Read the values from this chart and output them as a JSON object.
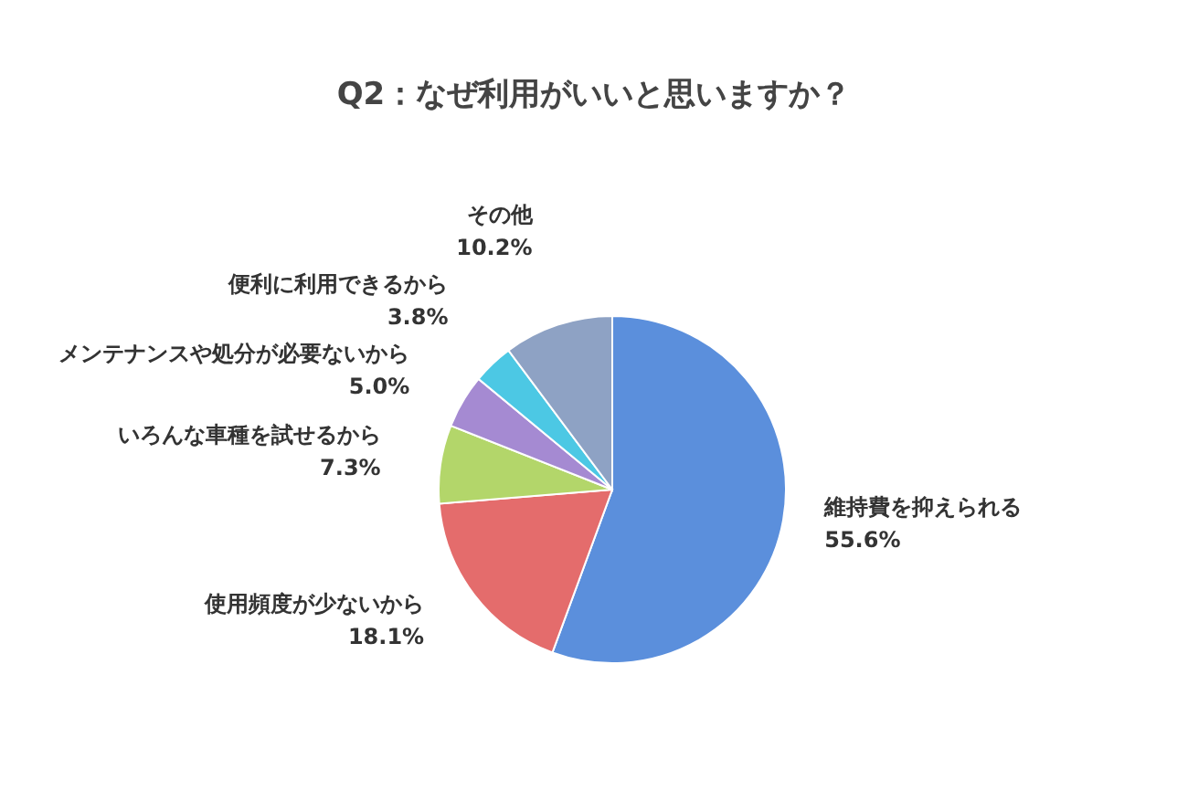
{
  "chart_data": {
    "type": "pie",
    "title": "Q2：なぜ利用がいいと思いますか？",
    "categories": [
      "維持費を抑えられる",
      "使用頻度が少ないから",
      "いろんな車種を試せるから",
      "メンテナンスや処分が必要ないから",
      "便利に利用できるから",
      "その他"
    ],
    "values": [
      55.6,
      18.1,
      7.3,
      5.0,
      3.8,
      10.2
    ],
    "value_labels": [
      "55.6%",
      "18.1%",
      "7.3%",
      "5.0%",
      "3.8%",
      "10.2%"
    ],
    "colors": [
      "#5b8fdc",
      "#e46c6c",
      "#b3d66a",
      "#a58ad2",
      "#4cc8e4",
      "#8ea2c4"
    ]
  }
}
